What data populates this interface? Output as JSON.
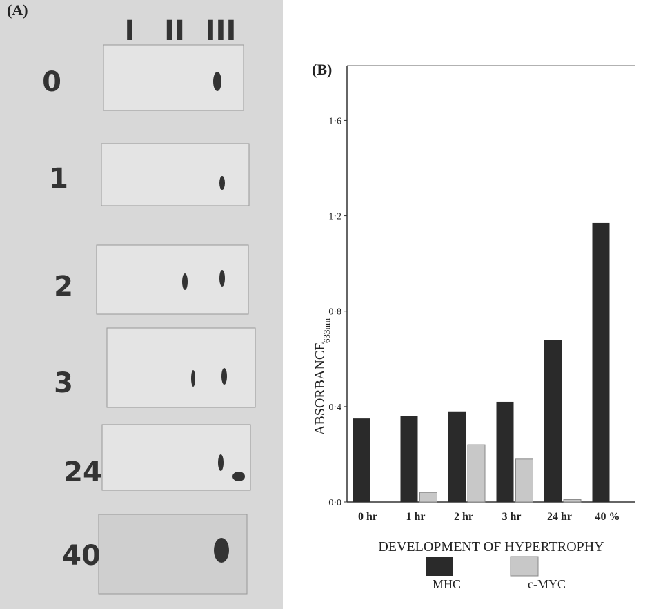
{
  "panel_a": {
    "label": "(A)",
    "lanes": [
      "I",
      "II",
      "III"
    ],
    "rows": [
      "0",
      "1",
      "2",
      "3",
      "24",
      "40"
    ]
  },
  "chart_data": {
    "type": "bar",
    "panel_label": "(B)",
    "y_label": "ABSORBANCE",
    "y_label_sub": "633nm",
    "x_label": "DEVELOPMENT OF HYPERTROPHY",
    "categories": [
      "0 hr",
      "1 hr",
      "2 hr",
      "3 hr",
      "24 hr",
      "40 %"
    ],
    "series": [
      {
        "name": "MHC",
        "color": "#2a2a2a",
        "values": [
          0.35,
          0.36,
          0.38,
          0.42,
          0.68,
          1.17
        ]
      },
      {
        "name": "c-MYC",
        "color": "#c8c8c8",
        "values": [
          null,
          0.04,
          0.24,
          0.18,
          0.01,
          null
        ]
      }
    ],
    "ylim": [
      0,
      1.83
    ],
    "yticks": [
      {
        "value": 0,
        "label": "0·0"
      },
      {
        "value": 0.4,
        "label": "0·4"
      },
      {
        "value": 0.8,
        "label": "0·8"
      },
      {
        "value": 1.2,
        "label": "1·2"
      },
      {
        "value": 1.6,
        "label": "1·6"
      }
    ]
  }
}
